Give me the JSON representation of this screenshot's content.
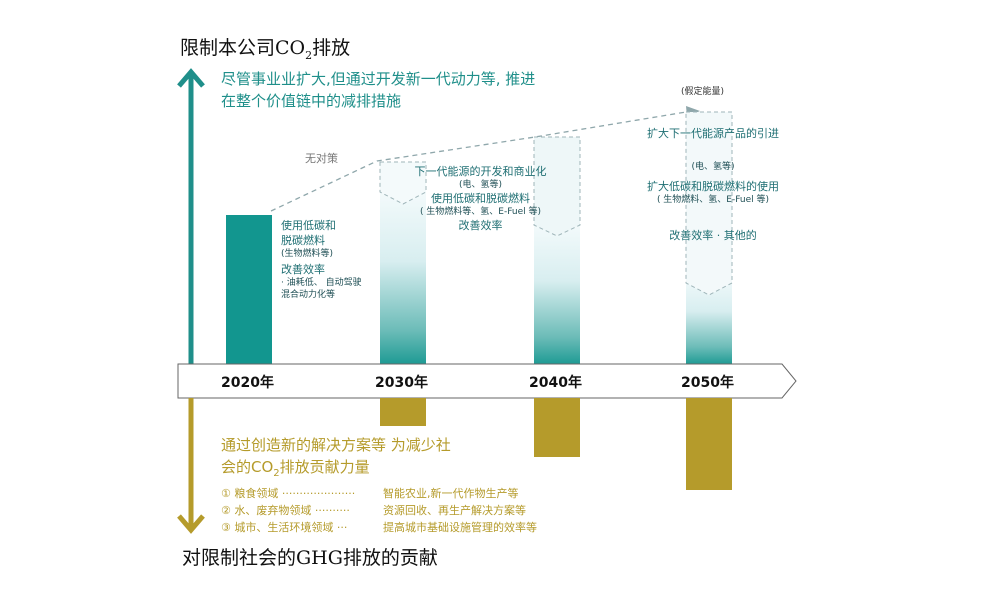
{
  "top_title_pre": "限制本公司CO",
  "top_title_sub": "2",
  "top_title_post": "排放",
  "top_desc_line1": "尽管事业业扩大,但通过开发新一代动力等, 推进",
  "top_desc_line2": "在整个价值链中的减排措施",
  "no_measure": "无对策",
  "assumed_energy": "(假定能量)",
  "years": [
    "2020年",
    "2030年",
    "2040年",
    "2050年"
  ],
  "bar2020": {
    "line1": "使用低碳和",
    "line2": "脱碳燃料",
    "line3": "(生物燃料等)",
    "line4": "改善效率",
    "line5": "· 油耗低、 自动驾驶",
    "line6": "混合动力化等"
  },
  "bar2030": {
    "line1": "下一代能源的开发和商业化",
    "line2": "(电、氢等)",
    "line3": "使用低碳和脱碳燃料",
    "line4": "( 生物燃料等、氢、E-Fuel 等)",
    "line5": "改善效率"
  },
  "bar2050": {
    "line1": "扩大下一代能源产品的引进",
    "line2": "(电、氢等)",
    "line3": "扩大低碳和脱碳燃料的使用",
    "line4": "( 生物燃料、氢、E-Fuel 等)",
    "line5": "改善效率 · 其他的"
  },
  "bottom_desc_line1": "通过创造新的解决方案等 为减少社",
  "bottom_desc_line2_pre": "会的CO",
  "bottom_desc_line2_sub": "2",
  "bottom_desc_line2_post": "排放贡献力量",
  "domains": [
    {
      "label": "① 粮食领域 ·····················",
      "value": "智能农业,新一代作物生产等"
    },
    {
      "label": "② 水、废弃物领域 ··········",
      "value": "资源回收、再生产解决方案等"
    },
    {
      "label": "③ 城市、生活环境领域 ···",
      "value": "提高城市基础设施管理的效率等"
    }
  ],
  "bottom_title": "对限制社会的GHG排放的贡献",
  "colors": {
    "teal": "#12968f",
    "gold": "#b59b2b"
  }
}
